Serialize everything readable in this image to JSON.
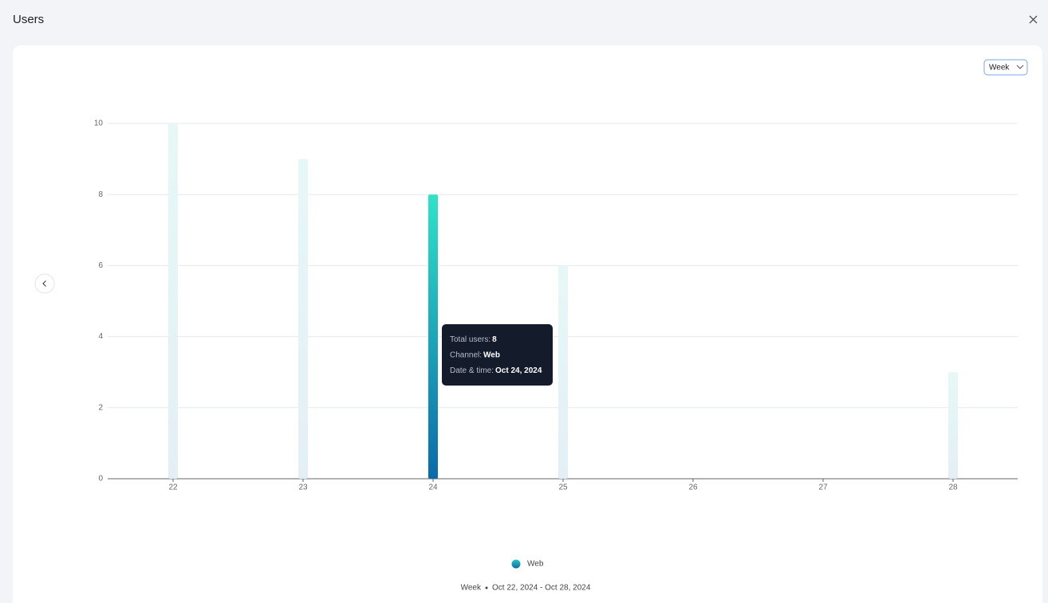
{
  "header": {
    "title": "Users"
  },
  "controls": {
    "period": "Week"
  },
  "chart_data": {
    "type": "bar",
    "categories": [
      "22",
      "23",
      "24",
      "25",
      "26",
      "27",
      "28"
    ],
    "series": [
      {
        "name": "Web",
        "color": "#17a2b8",
        "values": [
          10,
          9,
          8,
          6,
          0,
          0,
          3
        ]
      }
    ],
    "active_index": 2,
    "ylim": [
      0,
      10
    ],
    "yticks": [
      0,
      2,
      4,
      6,
      8,
      10
    ],
    "grid": true
  },
  "tooltip": {
    "rows": [
      [
        "Total users:",
        "8"
      ],
      [
        "Channel:",
        "Web"
      ],
      [
        "Date & time:",
        "Oct 24, 2024"
      ]
    ]
  },
  "footer": {
    "period": "Week",
    "range": "Oct 22, 2024 - Oct 28, 2024"
  }
}
